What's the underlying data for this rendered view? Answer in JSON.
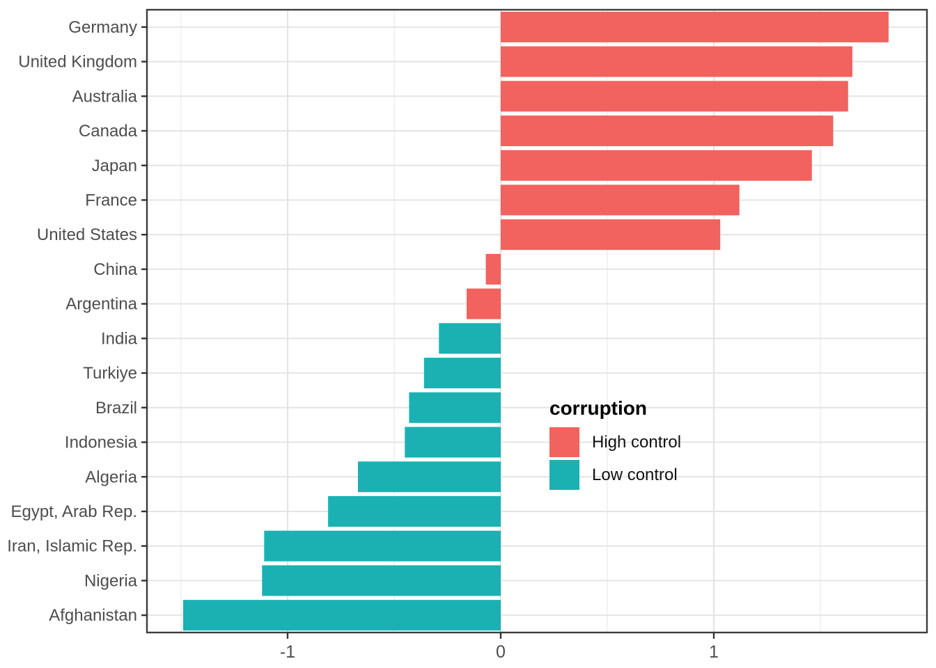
{
  "chart_data": {
    "type": "bar",
    "orientation": "horizontal",
    "title": "",
    "xlabel": "",
    "ylabel": "",
    "x_axis": {
      "lim": [
        -1.66,
        2.0
      ],
      "major_ticks": [
        -1,
        0,
        1
      ],
      "minor_ticks": [
        -1.5,
        -0.5,
        0.5,
        1.5
      ]
    },
    "grid": true,
    "panel_border": true,
    "categories": [
      "Germany",
      "United Kingdom",
      "Australia",
      "Canada",
      "Japan",
      "France",
      "United States",
      "China",
      "Argentina",
      "India",
      "Turkiye",
      "Brazil",
      "Indonesia",
      "Algeria",
      "Egypt, Arab Rep.",
      "Iran, Islamic Rep.",
      "Nigeria",
      "Afghanistan"
    ],
    "values": [
      1.82,
      1.65,
      1.63,
      1.56,
      1.46,
      1.12,
      1.03,
      -0.07,
      -0.16,
      -0.29,
      -0.36,
      -0.43,
      -0.45,
      -0.67,
      -0.81,
      -1.11,
      -1.12,
      -1.49
    ],
    "groups": [
      "High control",
      "High control",
      "High control",
      "High control",
      "High control",
      "High control",
      "High control",
      "High control",
      "High control",
      "Low control",
      "Low control",
      "Low control",
      "Low control",
      "Low control",
      "Low control",
      "Low control",
      "Low control",
      "Low control"
    ],
    "legend": {
      "title": "corruption",
      "position": "inside-right-middle",
      "items": [
        {
          "label": "High control",
          "color": "#F2625E"
        },
        {
          "label": "Low control",
          "color": "#1BB1B3"
        }
      ]
    }
  },
  "colors": {
    "background": "#FFFFFF",
    "grid_major": "#E4E4E4",
    "grid_minor": "#EFEFEF",
    "panel_border": "#3C3C3C",
    "tick": "#333333",
    "axis_text": "#4D4D4D"
  }
}
